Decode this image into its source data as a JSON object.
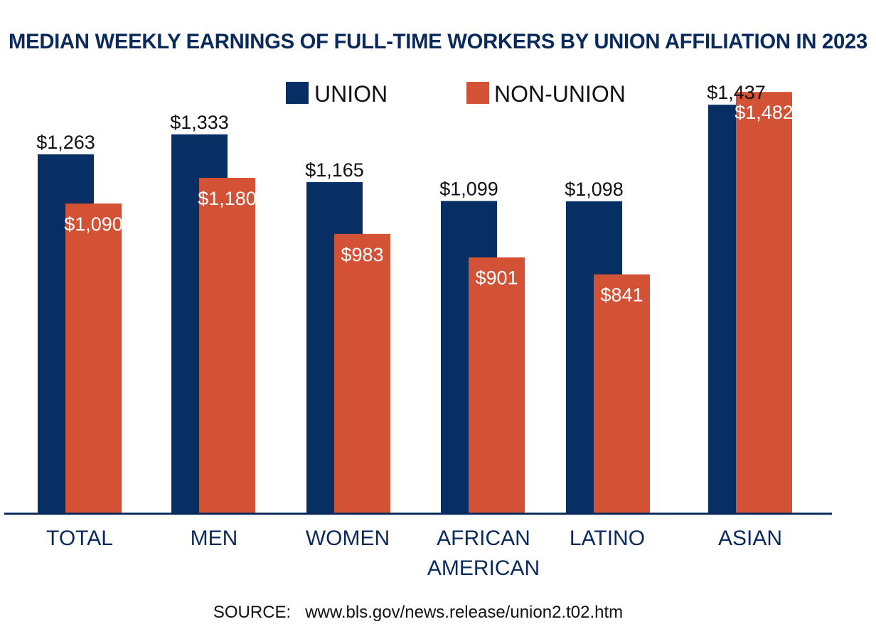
{
  "colors": {
    "union": "#072f63",
    "non_union": "#d35235",
    "title": "#0b2a5c",
    "text": "#111111",
    "white": "#ffffff",
    "axis": "#0b2a5c"
  },
  "chart_data": {
    "type": "bar",
    "title": "MEDIAN WEEKLY EARNINGS OF FULL-TIME WORKERS BY UNION AFFILIATION IN 2023",
    "legend_position": "top-center",
    "categories": [
      [
        "TOTAL"
      ],
      [
        "MEN"
      ],
      [
        "WOMEN"
      ],
      [
        "AFRICAN",
        "AMERICAN"
      ],
      [
        "LATINO"
      ],
      [
        "ASIAN"
      ]
    ],
    "series": [
      {
        "name": "UNION",
        "values": [
          1263,
          1333,
          1165,
          1099,
          1098,
          1437
        ],
        "labels": [
          "$1,263",
          "$1,333",
          "$1,165",
          "$1,099",
          "$1,098",
          "$1,437"
        ]
      },
      {
        "name": "NON-UNION",
        "values": [
          1090,
          1180,
          983,
          901,
          841,
          1482
        ],
        "labels": [
          "$1,090",
          "$1,180",
          "$983",
          "$901",
          "$841",
          "$1,482"
        ]
      }
    ],
    "source": "SOURCE:   www.bls.gov/news.release/union2.t02.htm"
  }
}
